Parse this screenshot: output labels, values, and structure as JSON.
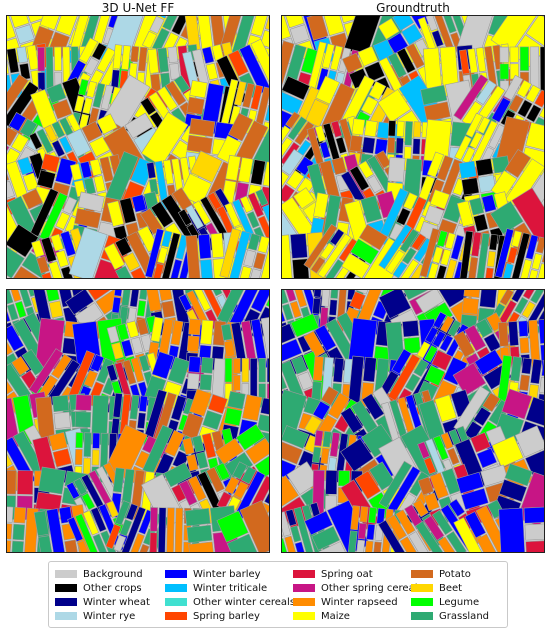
{
  "panels": {
    "prediction_title": "3D U-Net FF",
    "groundtruth_title": "Groundtruth"
  },
  "legend": [
    {
      "label": "Background",
      "color": "#cccccc"
    },
    {
      "label": "Other crops",
      "color": "#000000"
    },
    {
      "label": "Winter wheat",
      "color": "#00008b"
    },
    {
      "label": "Winter rye",
      "color": "#add8e6"
    },
    {
      "label": "Winter barley",
      "color": "#0000ff"
    },
    {
      "label": "Winter triticale",
      "color": "#00bfff"
    },
    {
      "label": "Other winter cereals",
      "color": "#40e0d0"
    },
    {
      "label": "Spring barley",
      "color": "#ff4500"
    },
    {
      "label": "Spring oat",
      "color": "#dc143c"
    },
    {
      "label": "Other spring cereals",
      "color": "#c71585"
    },
    {
      "label": "Winter rapseed",
      "color": "#ff8c00"
    },
    {
      "label": "Maize",
      "color": "#ffff00"
    },
    {
      "label": "Potato",
      "color": "#d2691e"
    },
    {
      "label": "Beet",
      "color": "#ffd700"
    },
    {
      "label": "Legume",
      "color": "#00ff00"
    },
    {
      "label": "Grassland",
      "color": "#2eaa72"
    }
  ]
}
